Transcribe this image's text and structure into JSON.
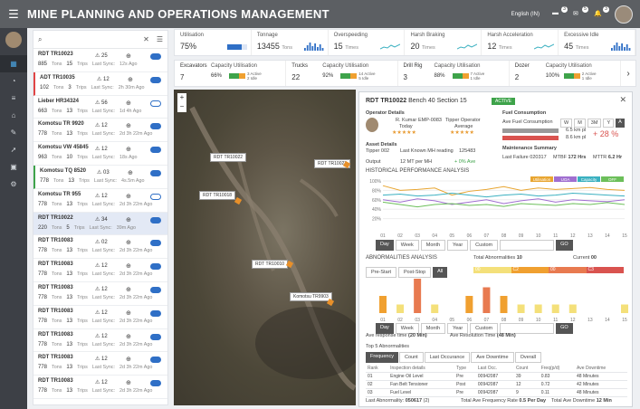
{
  "header": {
    "title": "MINE PLANNING AND OPERATIONS MANAGEMENT",
    "language": "English (IN)",
    "badge_1": "3",
    "badge_2": "5",
    "badge_3": "3"
  },
  "sidebar": {
    "items": [
      "dashboard",
      "map",
      "list",
      "home",
      "tools",
      "rocket",
      "gallery",
      "settings"
    ]
  },
  "vehicle_list": {
    "search_placeholder": "",
    "rows": [
      {
        "name": "RDT TR10023",
        "alerts": "25",
        "trips": "885",
        "trips_label": "Tons",
        "trips2": "15",
        "trips2_label": "Trips",
        "sync_label": "Last Sync:",
        "sync": "12s Ago",
        "toggle": true,
        "flag": ""
      },
      {
        "name": "ADT TR10035",
        "alerts": "12",
        "trips": "102",
        "trips_label": "Tons",
        "trips2": "3",
        "trips2_label": "Trips",
        "sync_label": "Last Sync:",
        "sync": "2h 30m Ago",
        "toggle": true,
        "flag": "red"
      },
      {
        "name": "Lieber HR34324",
        "alerts": "56",
        "trips": "663",
        "trips_label": "Tons",
        "trips2": "13",
        "trips2_label": "Trips",
        "sync_label": "Last Sync:",
        "sync": "1d 4h Ago",
        "toggle": false,
        "flag": ""
      },
      {
        "name": "Komotsu TR 9920",
        "alerts": "12",
        "trips": "778",
        "trips_label": "Tons",
        "trips2": "13",
        "trips2_label": "Trips",
        "sync_label": "Last Sync:",
        "sync": "2d 3h 22m Ago",
        "toggle": true,
        "flag": ""
      },
      {
        "name": "Komotsu VW 45845",
        "alerts": "12",
        "trips": "963",
        "trips_label": "Tons",
        "trips2": "10",
        "trips2_label": "Trips",
        "sync_label": "Last Sync:",
        "sync": "18s Ago",
        "toggle": true,
        "flag": ""
      },
      {
        "name": "Komotsu TQ 8520",
        "alerts": "03",
        "trips": "778",
        "trips_label": "Tons",
        "trips2": "13",
        "trips2_label": "Trips",
        "sync_label": "Last Sync:",
        "sync": "4s.5m Ago",
        "toggle": true,
        "flag": "green"
      },
      {
        "name": "Komotsu TR 955",
        "alerts": "12",
        "trips": "778",
        "trips_label": "Tons",
        "trips2": "13",
        "trips2_label": "Trips",
        "sync_label": "Last Sync:",
        "sync": "2d 3h 22m Ago",
        "toggle": false,
        "flag": ""
      },
      {
        "name": "RDT TR10022",
        "alerts": "34",
        "trips": "220",
        "trips_label": "Tons",
        "trips2": "5",
        "trips2_label": "Trips",
        "sync_label": "Last Sync:",
        "sync": "39m Ago",
        "toggle": true,
        "flag": "sel"
      },
      {
        "name": "RDT TR10083",
        "alerts": "02",
        "trips": "778",
        "trips_label": "Tons",
        "trips2": "13",
        "trips2_label": "Trips",
        "sync_label": "Last Sync:",
        "sync": "2d 3h 22m Ago",
        "toggle": true,
        "flag": ""
      },
      {
        "name": "RDT TR10083",
        "alerts": "12",
        "trips": "778",
        "trips_label": "Tons",
        "trips2": "13",
        "trips2_label": "Trips",
        "sync_label": "Last Sync:",
        "sync": "2d 3h 22m Ago",
        "toggle": true,
        "flag": ""
      },
      {
        "name": "RDT TR10083",
        "alerts": "12",
        "trips": "778",
        "trips_label": "Tons",
        "trips2": "13",
        "trips2_label": "Trips",
        "sync_label": "Last Sync:",
        "sync": "2d 3h 22m Ago",
        "toggle": true,
        "flag": ""
      },
      {
        "name": "RDT TR10083",
        "alerts": "12",
        "trips": "778",
        "trips_label": "Tons",
        "trips2": "13",
        "trips2_label": "Trips",
        "sync_label": "Last Sync:",
        "sync": "2d 3h 22m Ago",
        "toggle": true,
        "flag": ""
      },
      {
        "name": "RDT TR10083",
        "alerts": "12",
        "trips": "778",
        "trips_label": "Tons",
        "trips2": "13",
        "trips2_label": "Trips",
        "sync_label": "Last Sync:",
        "sync": "2d 3h 22m Ago",
        "toggle": true,
        "flag": ""
      },
      {
        "name": "RDT TR10083",
        "alerts": "12",
        "trips": "778",
        "trips_label": "Tons",
        "trips2": "13",
        "trips2_label": "Trips",
        "sync_label": "Last Sync:",
        "sync": "2d 3h 22m Ago",
        "toggle": true,
        "flag": ""
      },
      {
        "name": "RDT TR10083",
        "alerts": "12",
        "trips": "778",
        "trips_label": "Tons",
        "trips2": "13",
        "trips2_label": "Trips",
        "sync_label": "Last Sync:",
        "sync": "2d 3h 22m Ago",
        "toggle": true,
        "flag": ""
      }
    ]
  },
  "kpis": [
    {
      "label": "Utilisation",
      "value": "75%",
      "sub": ""
    },
    {
      "label": "Tonnage",
      "value": "13455",
      "sub": "Tons"
    },
    {
      "label": "Overspeeding",
      "value": "15",
      "sub": "Times"
    },
    {
      "label": "Harsh Braking",
      "value": "20",
      "sub": "Times"
    },
    {
      "label": "Harsh Acceleration",
      "value": "12",
      "sub": "Times"
    },
    {
      "label": "Excessive Idle",
      "value": "45",
      "sub": "Times"
    }
  ],
  "equipment": [
    {
      "label": "Excavators",
      "count": "7",
      "cu_label": "Capacity Utilisation",
      "pct": "66%",
      "active": "3 Active",
      "idle": "2 Idle"
    },
    {
      "label": "Trucks",
      "count": "22",
      "cu_label": "Capacity Utilisation",
      "pct": "92%",
      "active": "14 Active",
      "idle": "5 Idle"
    },
    {
      "label": "Drill Rig",
      "count": "3",
      "cu_label": "Capacity Utilisation",
      "pct": "88%",
      "active": "7 Active",
      "idle": "1 Idle"
    },
    {
      "label": "Dozer",
      "count": "2",
      "cu_label": "Capacity Utilisation",
      "pct": "100%",
      "active": "2 Active",
      "idle": "1 Idle"
    }
  ],
  "map": {
    "labels": [
      "RDT TR10022",
      "RDT TR10023",
      "RDT TR10018",
      "RDT TR10010",
      "Komotsu TR9903"
    ]
  },
  "detail": {
    "vehicle": "RDT TR10022",
    "location": "Bench 40 Section 15",
    "status": "ACTIVE",
    "operator_label": "Operator Details",
    "operator_name": "R. Kumar",
    "operator_id": "EMP-0083",
    "operator_role": "Tipper Operator",
    "rating_today": "Today",
    "rating_avg": "Average",
    "asset_label": "Asset Details",
    "asset_name": "Tipper 002",
    "mh_label": "Last Known MH reading",
    "mh": "125483",
    "output_label": "Output",
    "output": "12 MT per MH",
    "output_trend": "+ 0% Ave",
    "fuel_label": "Fuel Consumption",
    "fuel_sub": "Ave Fuel Consumption",
    "periods": [
      "W",
      "M",
      "3M",
      "Y",
      "A"
    ],
    "fuel_v1": "6.5 km pl",
    "fuel_v2": "8.6 km pl",
    "fuel_delta": "+ 28 %",
    "maint_label": "Maintenance Summary",
    "last_failure_label": "Last Failure",
    "last_failure": "020317",
    "mtbf_label": "MTBF",
    "mtbf": "172 Hrs",
    "mttr_label": "MTTR",
    "mttr": "6.2 Hr",
    "hist_label": "HISTORICAL PERFORMANCE ANALYSIS",
    "hist_legend": [
      "Utilisation",
      "UOA",
      "Capacity",
      "OFF"
    ],
    "range_buttons": [
      "Day",
      "Week",
      "Month",
      "Year",
      "Custom"
    ],
    "go": "GO",
    "abn_label": "ABNORMALITIES ANALYSIS",
    "abn_tabs": [
      "Pre-Start",
      "Post-Stop",
      "All"
    ],
    "total_abn_label": "Total Abnormalities",
    "total_abn": "10",
    "current_label": "Current",
    "current": "00",
    "abn_scale": [
      "00",
      "C2",
      "00",
      "C3"
    ],
    "resp_label": "Ave response time",
    "resp": "(20 Min)",
    "resol_label": "Ave Resolution Time",
    "resol": "(48 Min)",
    "top5_label": "Top 5 Abnormalities",
    "top5_tabs": [
      "Frequency",
      "Count",
      "Last Occurance",
      "Ave Downtime",
      "Overall"
    ],
    "cols": [
      "Rank",
      "Inspection details",
      "Type",
      "Last Occ.",
      "Count",
      "Freq(p/d)",
      "Ave Downtime"
    ],
    "rows": [
      [
        "01",
        "Engine Oil Level",
        "Pre",
        "00942087",
        "39",
        "0.83",
        "48 Minutes"
      ],
      [
        "02",
        "Fan Belt Tensioner",
        "Post",
        "00942087",
        "12",
        "0.72",
        "42 Minutes"
      ],
      [
        "03",
        "Fuel Level",
        "Pre",
        "00942087",
        "9",
        "0.11",
        "48 Minutes"
      ]
    ],
    "footer_last_label": "Last Abnormality:",
    "footer_last": "050617",
    "footer_last_count": "(2)",
    "footer_freq_label": "Total Ave Frequency Rate",
    "footer_freq": "0.5 Per Day",
    "footer_down_label": "Total Ave Downtime",
    "footer_down": "12 Min",
    "x_ticks": [
      "01",
      "02",
      "03",
      "04",
      "05",
      "06",
      "07",
      "08",
      "09",
      "10",
      "11",
      "12",
      "13",
      "14",
      "15"
    ],
    "y_ticks": [
      "100%",
      "80%",
      "60%",
      "40%",
      "20%"
    ]
  },
  "chart_data": [
    {
      "type": "line",
      "title": "HISTORICAL PERFORMANCE ANALYSIS",
      "x": [
        "01",
        "02",
        "03",
        "04",
        "05",
        "06",
        "07",
        "08",
        "09",
        "10",
        "11",
        "12",
        "13",
        "14",
        "15"
      ],
      "ylim": [
        0,
        100
      ],
      "series": [
        {
          "name": "Utilisation",
          "values": [
            90,
            80,
            82,
            85,
            70,
            78,
            82,
            88,
            80,
            85,
            82,
            84,
            86,
            82,
            80
          ]
        },
        {
          "name": "UOA",
          "values": [
            60,
            55,
            62,
            58,
            50,
            55,
            60,
            52,
            58,
            62,
            55,
            60,
            58,
            56,
            60
          ]
        },
        {
          "name": "Capacity",
          "values": [
            70,
            72,
            68,
            70,
            74,
            70,
            66,
            70,
            72,
            68,
            70,
            74,
            72,
            70,
            68
          ]
        },
        {
          "name": "OFF",
          "values": [
            55,
            50,
            45,
            50,
            52,
            48,
            50,
            46,
            52,
            50,
            48,
            52,
            50,
            54,
            50
          ]
        }
      ]
    },
    {
      "type": "bar",
      "title": "ABNORMALITIES ANALYSIS",
      "categories": [
        "01",
        "02",
        "03",
        "04",
        "05",
        "06",
        "07",
        "08",
        "09",
        "10",
        "11",
        "12",
        "13",
        "14",
        "15"
      ],
      "values": [
        2,
        1,
        4,
        1,
        0,
        2,
        3,
        2,
        1,
        1,
        1,
        1,
        0,
        0,
        1
      ]
    }
  ]
}
